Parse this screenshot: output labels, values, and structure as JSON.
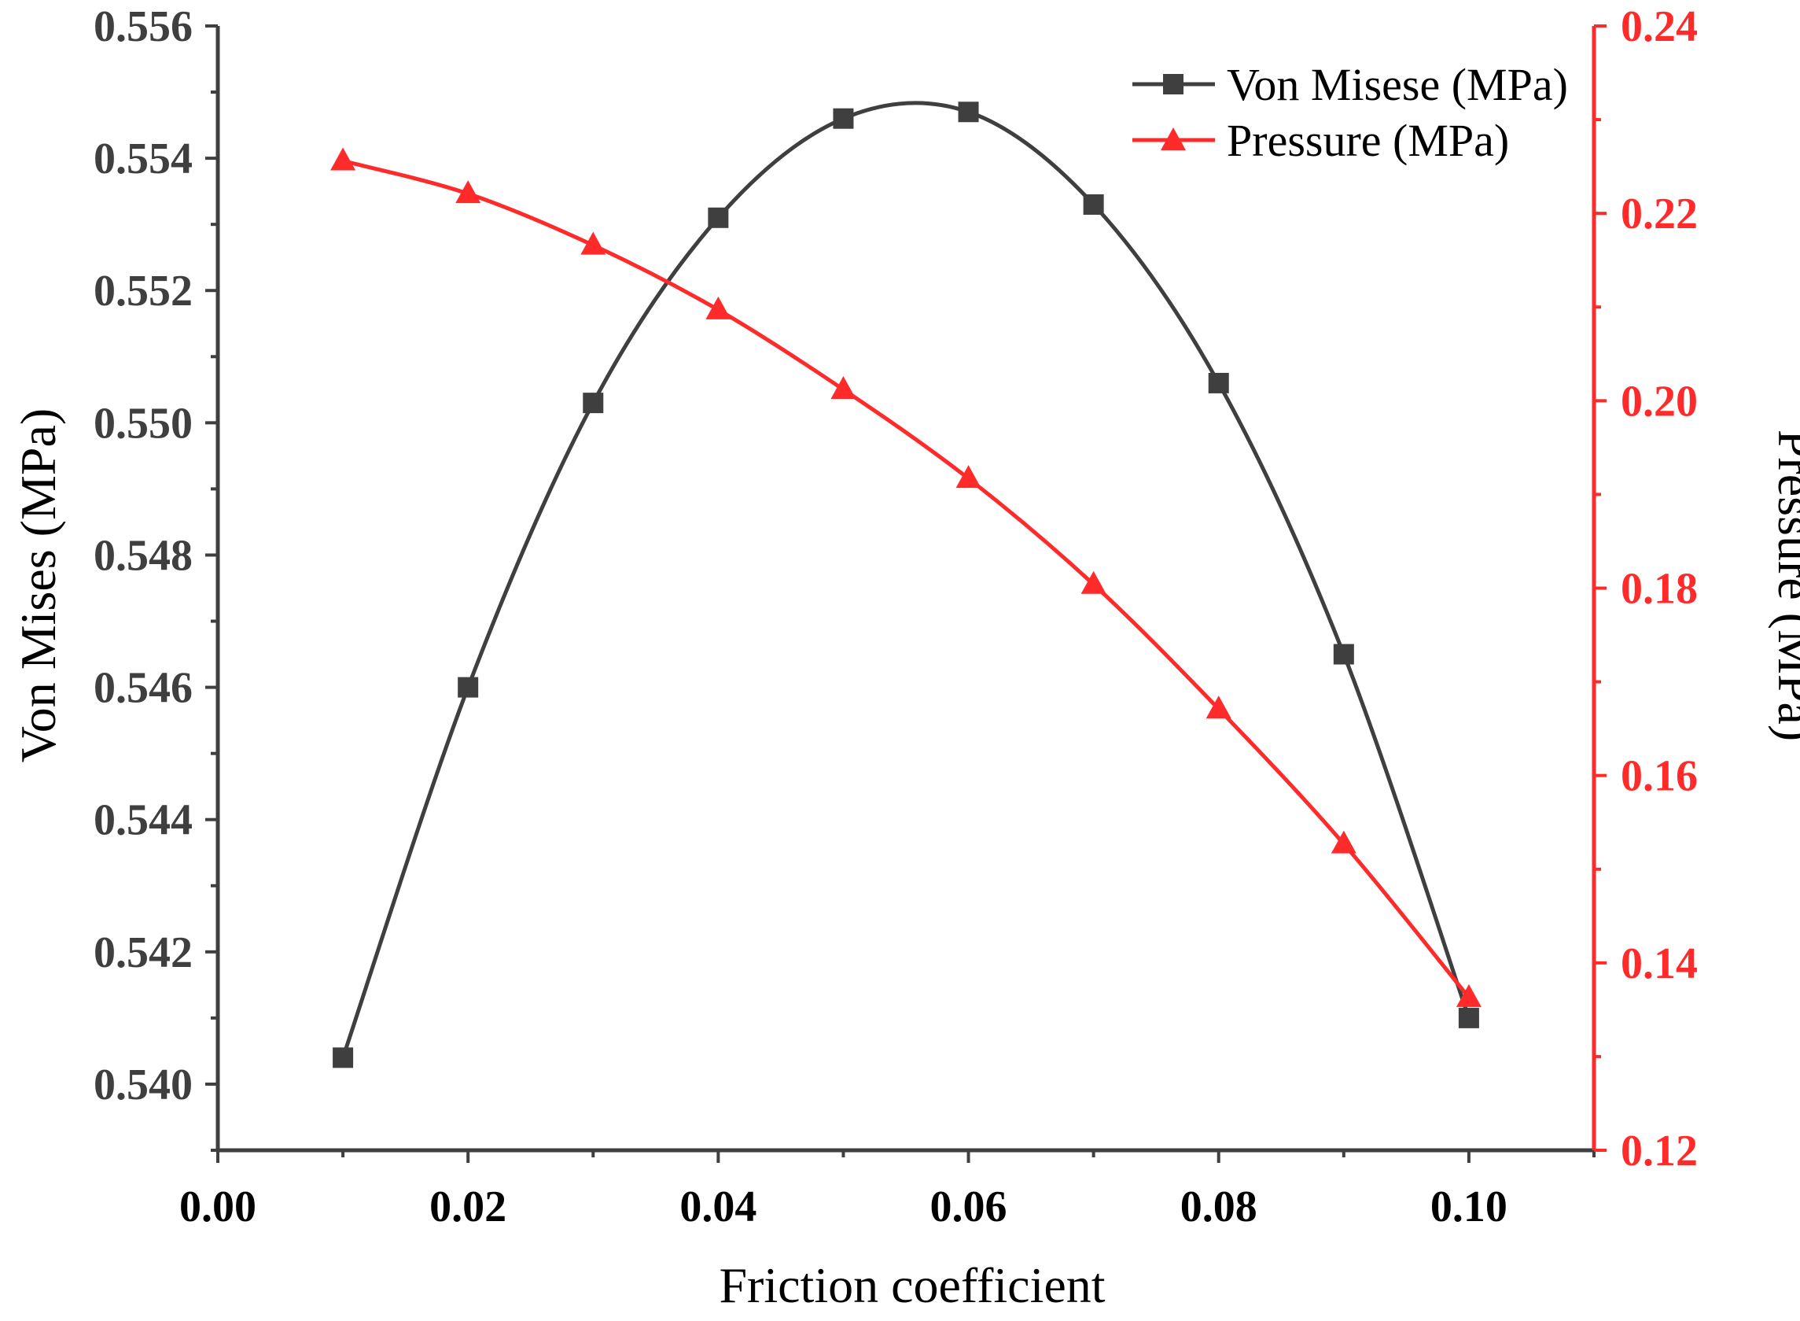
{
  "chart_data": {
    "type": "line",
    "title": "",
    "xlabel": "Friction coefficient",
    "ylabel_left": "Von Mises (MPa)",
    "ylabel_right": "Pressure (MPa)",
    "xlim": [
      0.0,
      0.11
    ],
    "ylim_left": [
      0.539,
      0.556
    ],
    "ylim_right": [
      0.12,
      0.24
    ],
    "x_ticks": [
      "0.00",
      "0.02",
      "0.04",
      "0.06",
      "0.08",
      "0.10"
    ],
    "x_tick_values": [
      0.0,
      0.02,
      0.04,
      0.06,
      0.08,
      0.1
    ],
    "y_left_ticks": [
      "0.540",
      "0.542",
      "0.544",
      "0.546",
      "0.548",
      "0.550",
      "0.552",
      "0.554",
      "0.556"
    ],
    "y_left_tick_values": [
      0.54,
      0.542,
      0.544,
      0.546,
      0.548,
      0.55,
      0.552,
      0.554,
      0.556
    ],
    "y_right_ticks": [
      "0.12",
      "0.14",
      "0.16",
      "0.18",
      "0.20",
      "0.22",
      "0.24"
    ],
    "y_right_tick_values": [
      0.12,
      0.14,
      0.16,
      0.18,
      0.2,
      0.22,
      0.24
    ],
    "grid": false,
    "legend_position": "top-right",
    "x": [
      0.01,
      0.02,
      0.03,
      0.04,
      0.05,
      0.06,
      0.07,
      0.08,
      0.09,
      0.1
    ],
    "series": [
      {
        "name": "Von Misese (MPa)",
        "axis": "left",
        "marker": "square",
        "color": "#3f3f3f",
        "values": [
          0.5404,
          0.546,
          0.5503,
          0.5531,
          0.5546,
          0.5547,
          0.5533,
          0.5506,
          0.5465,
          0.541
        ]
      },
      {
        "name": "Pressure (MPa)",
        "axis": "right",
        "marker": "triangle",
        "color": "#ff2a2a",
        "values": [
          0.2256,
          0.2221,
          0.2166,
          0.2097,
          0.2012,
          0.1917,
          0.1804,
          0.1671,
          0.1527,
          0.1363
        ]
      }
    ]
  }
}
